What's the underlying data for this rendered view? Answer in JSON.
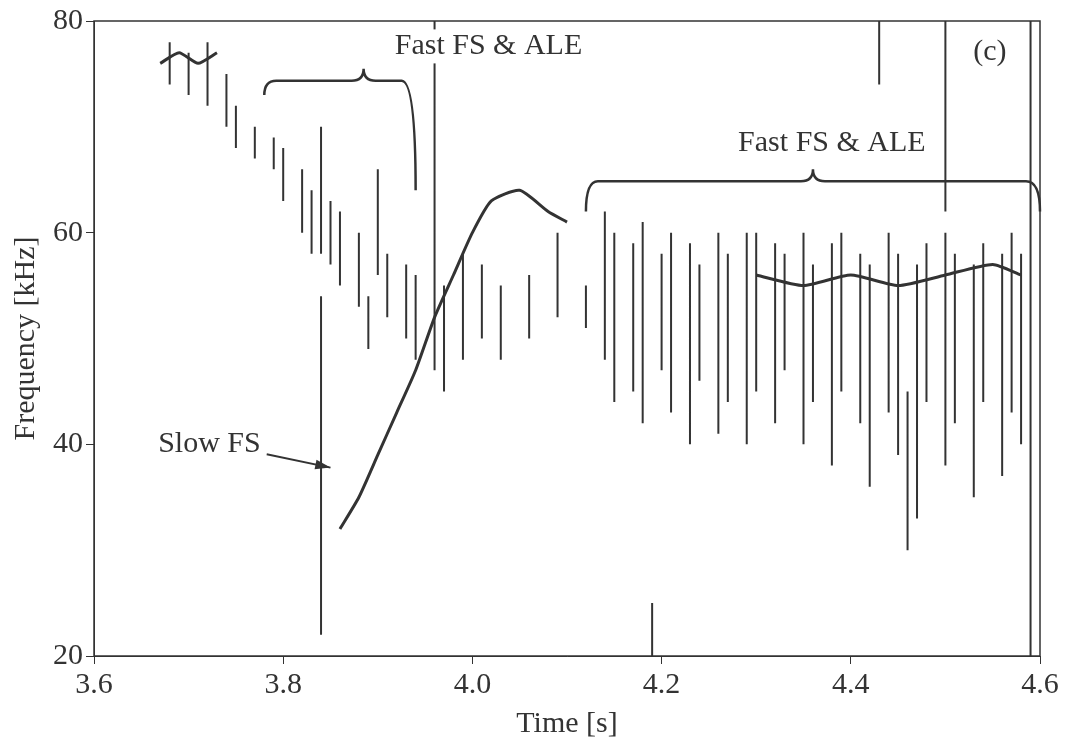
{
  "chart_data": {
    "type": "spectrogram",
    "x_label": "Time [s]",
    "y_label": "Frequency [kHz]",
    "xlim": [
      3.6,
      4.6
    ],
    "xticks": [
      3.6,
      3.8,
      {
        "value": 4,
        "label": "4.0"
      },
      4.2,
      4.4,
      4.6
    ],
    "ylim": [
      20,
      80
    ],
    "yticks": [
      20,
      40,
      60,
      80
    ],
    "grid": false,
    "series": [
      {
        "type": "line",
        "color": "#333333",
        "points": [
          [
            3.86,
            32
          ],
          [
            3.88,
            35
          ],
          [
            3.9,
            39
          ],
          [
            3.92,
            43
          ],
          [
            3.94,
            47
          ],
          [
            3.96,
            52
          ],
          [
            3.98,
            56
          ],
          [
            4.0,
            60
          ],
          [
            4.02,
            63
          ],
          [
            4.05,
            64
          ],
          [
            4.08,
            62
          ],
          [
            4.1,
            61
          ]
        ]
      },
      {
        "type": "line",
        "color": "#333333",
        "points": [
          [
            4.3,
            56
          ],
          [
            4.35,
            55
          ],
          [
            4.4,
            56
          ],
          [
            4.45,
            55
          ],
          [
            4.5,
            56
          ],
          [
            4.55,
            57
          ],
          [
            4.58,
            56
          ]
        ]
      },
      {
        "type": "line",
        "color": "#333333",
        "points": [
          [
            3.67,
            76
          ],
          [
            3.69,
            77
          ],
          [
            3.71,
            76
          ],
          [
            3.73,
            77
          ]
        ]
      }
    ],
    "streaks": {
      "color": "#333333",
      "values": [
        [
          3.68,
          74,
          78
        ],
        [
          3.7,
          73,
          77
        ],
        [
          3.72,
          72,
          78
        ],
        [
          3.74,
          70,
          75
        ],
        [
          3.75,
          68,
          72
        ],
        [
          3.77,
          67,
          70
        ],
        [
          3.79,
          66,
          69
        ],
        [
          3.8,
          63,
          68
        ],
        [
          3.82,
          60,
          66
        ],
        [
          3.83,
          58,
          64
        ],
        [
          3.85,
          57,
          63
        ],
        [
          3.86,
          55,
          62
        ],
        [
          3.88,
          53,
          60
        ],
        [
          3.9,
          56,
          66
        ],
        [
          3.91,
          52,
          58
        ],
        [
          3.93,
          50,
          57
        ],
        [
          3.94,
          48,
          56
        ],
        [
          3.84,
          58,
          70
        ],
        [
          3.89,
          49,
          54
        ],
        [
          3.84,
          22,
          54
        ],
        [
          3.96,
          47,
          80
        ],
        [
          4.29,
          40,
          60
        ],
        [
          4.43,
          74,
          80
        ],
        [
          4.5,
          62,
          80
        ],
        [
          4.59,
          20,
          80
        ],
        [
          4.46,
          30,
          45
        ],
        [
          4.19,
          20,
          25
        ],
        [
          3.97,
          45,
          55
        ],
        [
          3.99,
          48,
          58
        ],
        [
          4.01,
          50,
          57
        ],
        [
          4.03,
          48,
          55
        ],
        [
          4.06,
          50,
          56
        ],
        [
          4.09,
          52,
          60
        ],
        [
          4.12,
          51,
          55
        ],
        [
          4.14,
          48,
          62
        ],
        [
          4.15,
          44,
          60
        ],
        [
          4.17,
          45,
          59
        ],
        [
          4.18,
          42,
          61
        ],
        [
          4.2,
          47,
          58
        ],
        [
          4.21,
          43,
          60
        ],
        [
          4.23,
          40,
          59
        ],
        [
          4.24,
          46,
          57
        ],
        [
          4.26,
          41,
          60
        ],
        [
          4.27,
          44,
          58
        ],
        [
          4.3,
          45,
          60
        ],
        [
          4.32,
          42,
          59
        ],
        [
          4.33,
          47,
          58
        ],
        [
          4.35,
          40,
          60
        ],
        [
          4.36,
          44,
          57
        ],
        [
          4.38,
          38,
          59
        ],
        [
          4.39,
          45,
          60
        ],
        [
          4.41,
          42,
          58
        ],
        [
          4.42,
          36,
          57
        ],
        [
          4.44,
          43,
          60
        ],
        [
          4.45,
          39,
          58
        ],
        [
          4.47,
          33,
          57
        ],
        [
          4.48,
          44,
          59
        ],
        [
          4.5,
          38,
          60
        ],
        [
          4.51,
          42,
          58
        ],
        [
          4.53,
          35,
          57
        ],
        [
          4.54,
          44,
          59
        ],
        [
          4.56,
          37,
          58
        ],
        [
          4.57,
          43,
          60
        ],
        [
          4.58,
          40,
          58
        ]
      ]
    },
    "annotations": [
      {
        "text": "Fast FS & ALE",
        "x": 4.017,
        "y": 77.6,
        "bracket": [
          [
            3.78,
            73
          ],
          [
            3.885,
            75.5
          ],
          [
            3.94,
            64
          ]
        ]
      },
      {
        "text": "Fast FS & ALE",
        "x": 4.38,
        "y": 68.5,
        "bracket": [
          [
            4.12,
            62
          ],
          [
            4.36,
            66
          ],
          [
            4.6,
            62
          ]
        ]
      },
      {
        "text": "Slow FS",
        "x": 3.722,
        "y": 40,
        "arrow_to": [
          3.85,
          37.8
        ]
      },
      {
        "text": "(c)",
        "x": 4.547,
        "y": 77.1
      }
    ]
  }
}
